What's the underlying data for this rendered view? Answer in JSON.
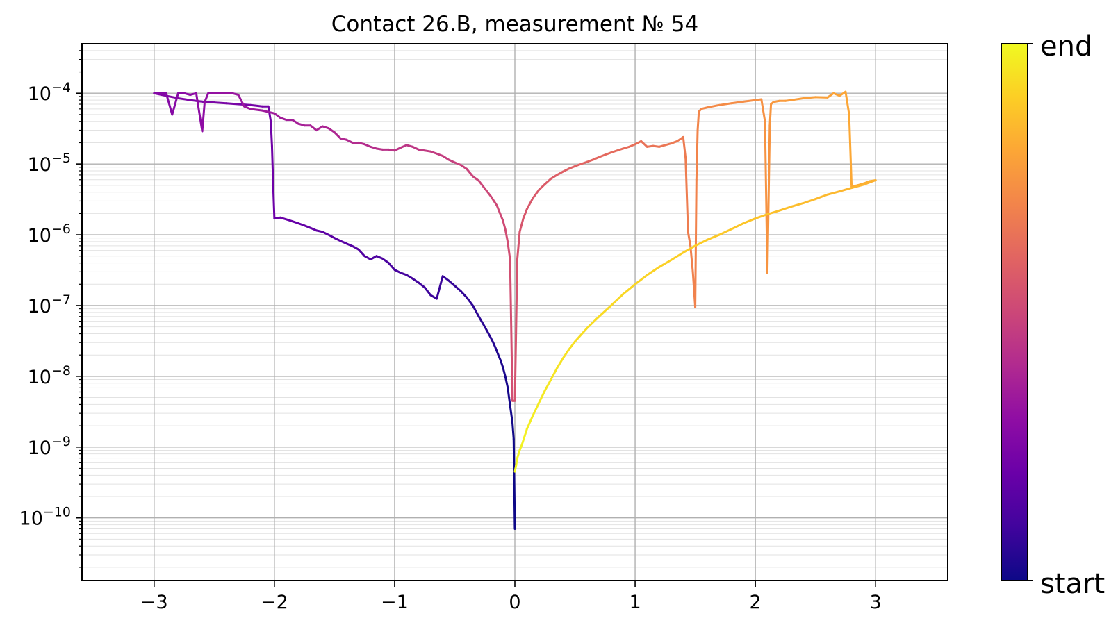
{
  "chart_data": {
    "type": "line",
    "title": "Contact 26.B, measurement № 54",
    "xlabel": "",
    "ylabel": "",
    "xlim": [
      -3.6,
      3.6
    ],
    "ylim": [
      1.3e-11,
      0.0005
    ],
    "yscale": "log",
    "grid": true,
    "minor_grid": true,
    "x_ticks": [
      -3,
      -2,
      -1,
      0,
      1,
      2,
      3
    ],
    "x_tick_labels": [
      "−3",
      "−2",
      "−1",
      "0",
      "1",
      "2",
      "3"
    ],
    "y_ticks": [
      {
        "value": 0.0001,
        "mantissa": "10",
        "exponent": "−4"
      },
      {
        "value": 1e-05,
        "mantissa": "10",
        "exponent": "−5"
      },
      {
        "value": 1e-06,
        "mantissa": "10",
        "exponent": "−6"
      },
      {
        "value": 1e-07,
        "mantissa": "10",
        "exponent": "−7"
      },
      {
        "value": 1e-08,
        "mantissa": "10",
        "exponent": "−8"
      },
      {
        "value": 1e-09,
        "mantissa": "10",
        "exponent": "−9"
      },
      {
        "value": 1e-10,
        "mantissa": "10",
        "exponent": "−10"
      }
    ],
    "colormap": "plasma",
    "colorbar": {
      "min_label": "start",
      "max_label": "end"
    },
    "series": [
      {
        "x": [
          0.0,
          -0.01,
          -0.02,
          -0.04,
          -0.06,
          -0.08,
          -0.1,
          -0.12,
          -0.14,
          -0.16,
          -0.18,
          -0.2,
          -0.25,
          -0.3,
          -0.35,
          -0.4,
          -0.45,
          -0.5,
          -0.55,
          -0.6,
          -0.65,
          -0.7,
          -0.75,
          -0.8,
          -0.85,
          -0.9,
          -0.95,
          -1.0,
          -1.05,
          -1.1,
          -1.15,
          -1.2,
          -1.25,
          -1.3,
          -1.35,
          -1.4,
          -1.45,
          -1.5,
          -1.55,
          -1.6,
          -1.65,
          -1.7,
          -1.75,
          -1.8,
          -1.85,
          -1.9,
          -1.95,
          -2.0,
          -2.01,
          -2.02,
          -2.03,
          -2.05,
          -2.1,
          -2.2,
          -2.3,
          -2.4,
          -2.5,
          -2.6,
          -2.7,
          -2.8,
          -2.9,
          -3.0
        ],
        "y": [
          7e-11,
          1.3e-09,
          2.2e-09,
          3.9e-09,
          7e-09,
          1e-08,
          1.35e-08,
          1.7e-08,
          2.05e-08,
          2.5e-08,
          3e-08,
          3.5e-08,
          5e-08,
          7e-08,
          1e-07,
          1.3e-07,
          1.6e-07,
          1.9e-07,
          2.25e-07,
          2.6e-07,
          1.25e-07,
          1.4e-07,
          1.8e-07,
          2.1e-07,
          2.4e-07,
          2.7e-07,
          2.9e-07,
          3.2e-07,
          4e-07,
          4.6e-07,
          5e-07,
          4.5e-07,
          5e-07,
          6.2e-07,
          6.9e-07,
          7.5e-07,
          8.2e-07,
          9e-07,
          1e-06,
          1.1e-06,
          1.15e-06,
          1.25e-06,
          1.35e-06,
          1.45e-06,
          1.55e-06,
          1.65e-06,
          1.75e-06,
          1.7e-06,
          5e-06,
          1.8e-05,
          4e-05,
          6.5e-05,
          6.5e-05,
          6.8e-05,
          7e-05,
          7.2e-05,
          7.4e-05,
          7.6e-05,
          8e-05,
          8.5e-05,
          9.2e-05,
          0.0001
        ]
      },
      {
        "x": [
          -3.0,
          -2.9,
          -2.85,
          -2.8,
          -2.75,
          -2.7,
          -2.65,
          -2.6,
          -2.58,
          -2.55,
          -2.5,
          -2.45,
          -2.4,
          -2.35,
          -2.3,
          -2.25,
          -2.2,
          -2.1,
          -2.0,
          -1.95,
          -1.9,
          -1.85,
          -1.8,
          -1.75,
          -1.7,
          -1.65,
          -1.6,
          -1.55,
          -1.5,
          -1.45,
          -1.4,
          -1.35,
          -1.3,
          -1.25,
          -1.2,
          -1.15,
          -1.1,
          -1.05,
          -1.0,
          -0.95,
          -0.9,
          -0.85,
          -0.8,
          -0.75,
          -0.7,
          -0.65,
          -0.6,
          -0.55,
          -0.5,
          -0.45,
          -0.4,
          -0.35,
          -0.3,
          -0.25,
          -0.2,
          -0.15,
          -0.1,
          -0.08,
          -0.06,
          -0.04,
          -0.02,
          -0.01,
          0.0
        ],
        "y": [
          0.0001,
          0.0001,
          5e-05,
          0.0001,
          0.0001,
          9.5e-05,
          0.0001,
          2.9e-05,
          7.5e-05,
          0.0001,
          0.0001,
          0.0001,
          0.0001,
          0.0001,
          9.5e-05,
          6.5e-05,
          6e-05,
          5.7e-05,
          5.2e-05,
          4.5e-05,
          4.2e-05,
          4.2e-05,
          3.7e-05,
          3.5e-05,
          3.5e-05,
          3e-05,
          3.4e-05,
          3.2e-05,
          2.8e-05,
          2.3e-05,
          2.2e-05,
          2e-05,
          2e-05,
          1.9e-05,
          1.75e-05,
          1.65e-05,
          1.6e-05,
          1.6e-05,
          1.55e-05,
          1.7e-05,
          1.85e-05,
          1.75e-05,
          1.6e-05,
          1.55e-05,
          1.5e-05,
          1.4e-05,
          1.3e-05,
          1.15e-05,
          1.05e-05,
          9.7e-06,
          8.5e-06,
          6.7e-06,
          5.8e-06,
          4.5e-06,
          3.5e-06,
          2.6e-06,
          1.6e-06,
          1.2e-06,
          8e-07,
          4.5e-07,
          4.5e-09,
          4.5e-09,
          4.5e-09
        ]
      },
      {
        "x": [
          0.0,
          0.02,
          0.04,
          0.07,
          0.1,
          0.15,
          0.2,
          0.25,
          0.3,
          0.35,
          0.4,
          0.45,
          0.5,
          0.55,
          0.6,
          0.65,
          0.7,
          0.75,
          0.8,
          0.85,
          0.9,
          0.95,
          1.0,
          1.05,
          1.1,
          1.15,
          1.2,
          1.25,
          1.3,
          1.35,
          1.4,
          1.42,
          1.44,
          1.46,
          1.48,
          1.5,
          1.51,
          1.52,
          1.53,
          1.55,
          1.6,
          1.7,
          1.8,
          1.9,
          2.0,
          2.05,
          2.08,
          2.1,
          2.12,
          2.13,
          2.15,
          2.2,
          2.25,
          2.3,
          2.4,
          2.5,
          2.6,
          2.65,
          2.7,
          2.75,
          2.78,
          2.8
        ],
        "y": [
          4.5e-09,
          4.5e-07,
          1.1e-06,
          1.7e-06,
          2.3e-06,
          3.3e-06,
          4.3e-06,
          5.2e-06,
          6.2e-06,
          7e-06,
          7.8e-06,
          8.6e-06,
          9.3e-06,
          1e-05,
          1.07e-05,
          1.15e-05,
          1.25e-05,
          1.35e-05,
          1.45e-05,
          1.55e-05,
          1.65e-05,
          1.75e-05,
          1.9e-05,
          2.1e-05,
          1.75e-05,
          1.8e-05,
          1.75e-05,
          1.85e-05,
          1.95e-05,
          2.1e-05,
          2.4e-05,
          1.2e-05,
          1.1e-06,
          7e-07,
          3e-07,
          9.5e-08,
          6e-06,
          3e-05,
          5.5e-05,
          6e-05,
          6.3e-05,
          6.8e-05,
          7.2e-05,
          7.6e-05,
          8e-05,
          8.2e-05,
          4e-05,
          2.9e-07,
          3.5e-05,
          7e-05,
          7.5e-05,
          7.8e-05,
          7.8e-05,
          8e-05,
          8.5e-05,
          8.8e-05,
          8.7e-05,
          0.0001,
          9.2e-05,
          0.000105,
          5e-05,
          5e-06
        ]
      },
      {
        "x": [
          2.8,
          2.85,
          2.9,
          2.95,
          3.0,
          2.95,
          2.9,
          2.8,
          2.7,
          2.6,
          2.5,
          2.4,
          2.3,
          2.2,
          2.1,
          2.0,
          1.9,
          1.8,
          1.7,
          1.6,
          1.5,
          1.4,
          1.3,
          1.2,
          1.1,
          1.0,
          0.9,
          0.8,
          0.7,
          0.6,
          0.5,
          0.45,
          0.4,
          0.35,
          0.3,
          0.25,
          0.2,
          0.15,
          0.1,
          0.08,
          0.06,
          0.04,
          0.02,
          0.01,
          0.0
        ],
        "y": [
          4.8e-06,
          5e-06,
          5.3e-06,
          5.7e-06,
          5.9e-06,
          5.5e-06,
          5.1e-06,
          4.6e-06,
          4.1e-06,
          3.7e-06,
          3.2e-06,
          2.8e-06,
          2.5e-06,
          2.2e-06,
          1.95e-06,
          1.7e-06,
          1.45e-06,
          1.2e-06,
          1e-06,
          8.5e-07,
          7e-07,
          5.6e-07,
          4.4e-07,
          3.5e-07,
          2.7e-07,
          2e-07,
          1.45e-07,
          1e-07,
          7e-08,
          4.8e-08,
          3.1e-08,
          2.4e-08,
          1.8e-08,
          1.3e-08,
          9e-09,
          6.3e-09,
          4.2e-09,
          2.8e-09,
          1.8e-09,
          1.4e-09,
          1.1e-09,
          9e-10,
          7e-10,
          5.5e-10,
          4.5e-10
        ]
      }
    ]
  }
}
